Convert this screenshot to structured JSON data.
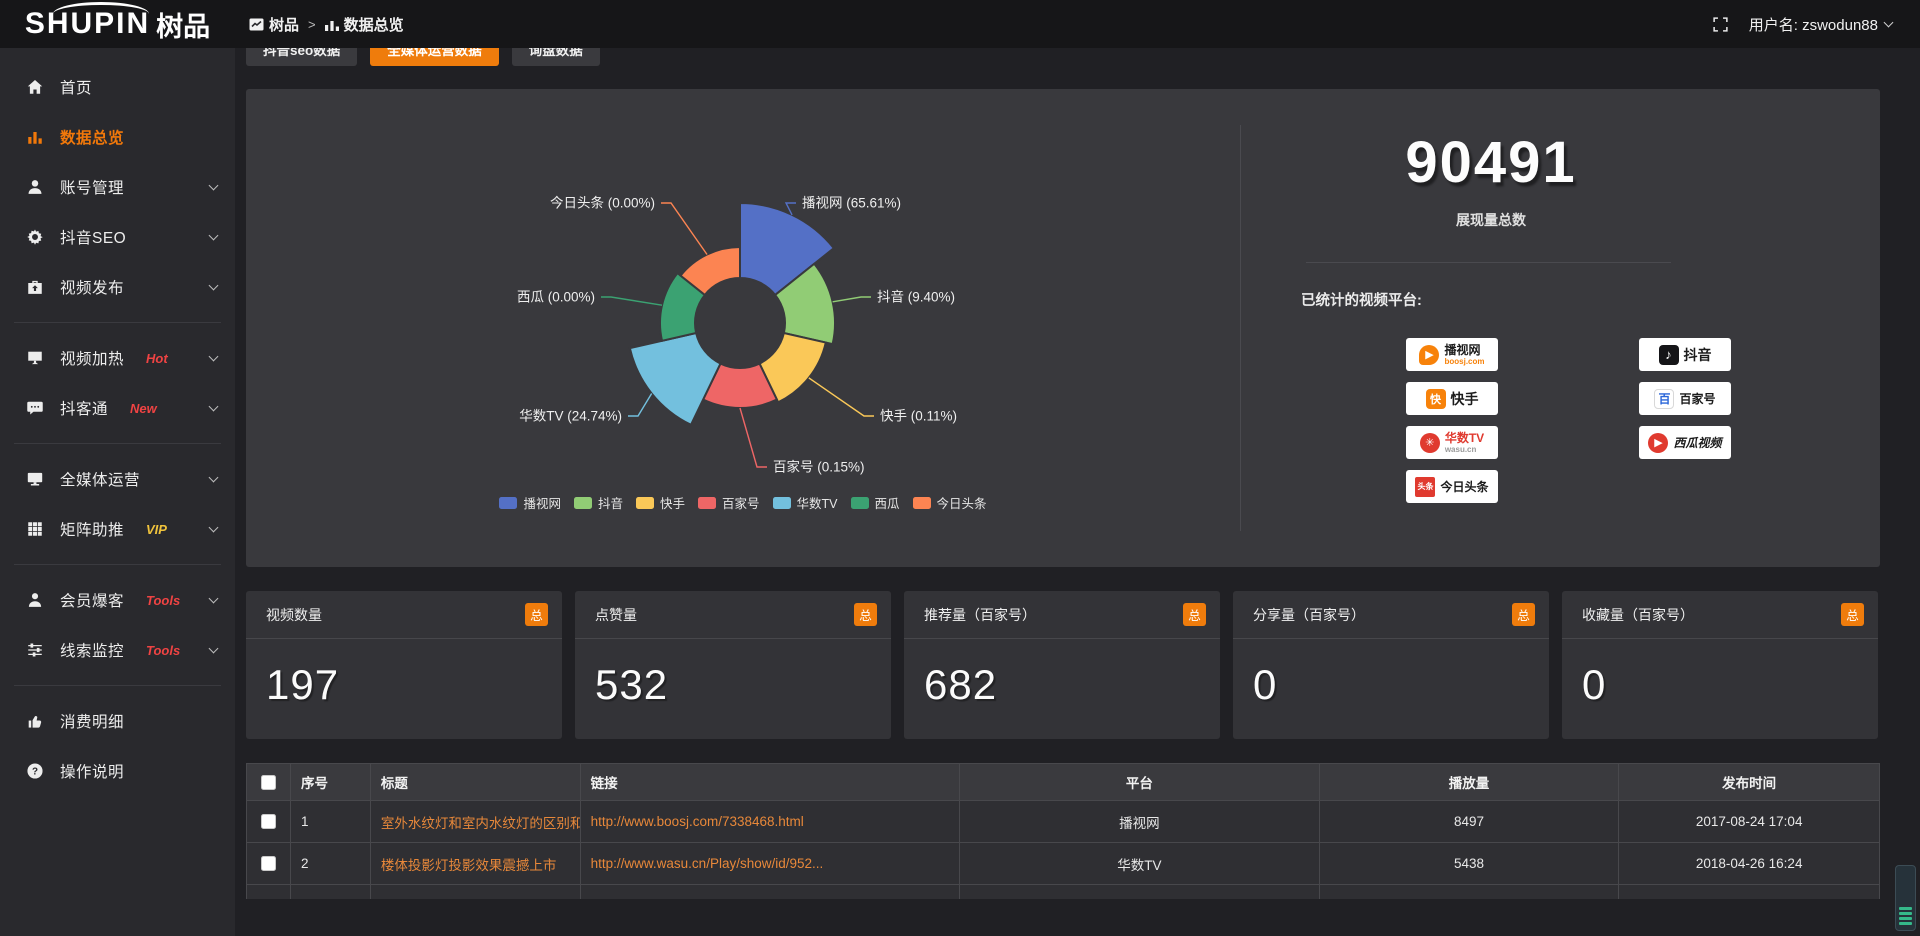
{
  "colors": {
    "accent": "#ef7c0c",
    "panel_bg": "#39393d",
    "hot_badge": "#ef4343",
    "vip_badge": "#f0c33c",
    "link_text": "#e8883a"
  },
  "topbar": {
    "logo_main": "SHUPIN",
    "logo_cn": "树品",
    "breadcrumb_root": "树品",
    "breadcrumb_sep": ">",
    "breadcrumb_current": "数据总览",
    "username": "用户名: zswodun88"
  },
  "sidebar": {
    "items": [
      {
        "label": "首页"
      },
      {
        "label": "数据总览"
      },
      {
        "label": "账号管理"
      },
      {
        "label": "抖音SEO"
      },
      {
        "label": "视频发布"
      },
      {
        "label": "视频加热",
        "badge": "Hot"
      },
      {
        "label": "抖客通",
        "badge": "New"
      },
      {
        "label": "全媒体运营"
      },
      {
        "label": "矩阵助推",
        "badge": "VIP"
      },
      {
        "label": "会员爆客",
        "badge": "Tools"
      },
      {
        "label": "线索监控",
        "badge": "Tools"
      },
      {
        "label": "消费明细"
      },
      {
        "label": "操作说明"
      }
    ]
  },
  "tabs": {
    "items": [
      {
        "label": "抖音seo数据"
      },
      {
        "label": "全媒体运营数据"
      },
      {
        "label": "询盘数据"
      }
    ]
  },
  "chart_data": {
    "type": "pie",
    "subtype": "nightingale-rose",
    "unit": "%",
    "categories": [
      "播视网",
      "抖音",
      "快手",
      "百家号",
      "华数TV",
      "西瓜",
      "今日头条"
    ],
    "values": [
      65.61,
      9.4,
      0.11,
      0.15,
      24.74,
      0.0,
      0.0
    ],
    "slice_labels": [
      "播视网 (65.61%)",
      "抖音 (9.40%)",
      "快手 (0.11%)",
      "百家号 (0.15%)",
      "华数TV (24.74%)",
      "西瓜 (0.00%)",
      "今日头条 (0.00%)"
    ],
    "colors": [
      "#5470c6",
      "#91cc75",
      "#fac858",
      "#ee6666",
      "#73c0de",
      "#3ba272",
      "#fc8452"
    ],
    "legend": [
      "播视网",
      "抖音",
      "快手",
      "百家号",
      "华数TV",
      "西瓜",
      "今日头条"
    ],
    "legend_position": "bottom",
    "title": ""
  },
  "summary": {
    "total_value": "90491",
    "total_label": "展现量总数",
    "platforms_title": "已统计的视频平台:",
    "platform_badges_col1": [
      {
        "name": "播视网",
        "sub": "boosj.com"
      },
      {
        "name": "快手",
        "sub": ""
      },
      {
        "name": "华数TV",
        "sub": "wasu.cn"
      },
      {
        "name": "今日头条",
        "sub": ""
      }
    ],
    "platform_badges_col2": [
      {
        "name": "抖音",
        "sub": ""
      },
      {
        "name": "百家号",
        "sub": ""
      },
      {
        "name": "西瓜视频",
        "sub": ""
      }
    ]
  },
  "stat_cards": [
    {
      "label": "视频数量",
      "badge": "总",
      "value": "197"
    },
    {
      "label": "点赞量",
      "badge": "总",
      "value": "532"
    },
    {
      "label": "推荐量（百家号）",
      "badge": "总",
      "value": "682"
    },
    {
      "label": "分享量（百家号）",
      "badge": "总",
      "value": "0"
    },
    {
      "label": "收藏量（百家号）",
      "badge": "总",
      "value": "0"
    }
  ],
  "table": {
    "headers": [
      "序号",
      "标题",
      "链接",
      "平台",
      "播放量",
      "发布时间"
    ],
    "rows": [
      {
        "no": "1",
        "title": "室外水纹灯和室内水纹灯的区别和简介",
        "link": "http://www.boosj.com/7338468.html",
        "platform": "播视网",
        "plays": "8497",
        "time": "2017-08-24 17:04"
      },
      {
        "no": "2",
        "title": "楼体投影灯投影效果震撼上市",
        "link": "http://www.wasu.cn/Play/show/id/952...",
        "platform": "华数TV",
        "plays": "5438",
        "time": "2018-04-26 16:24"
      }
    ]
  }
}
